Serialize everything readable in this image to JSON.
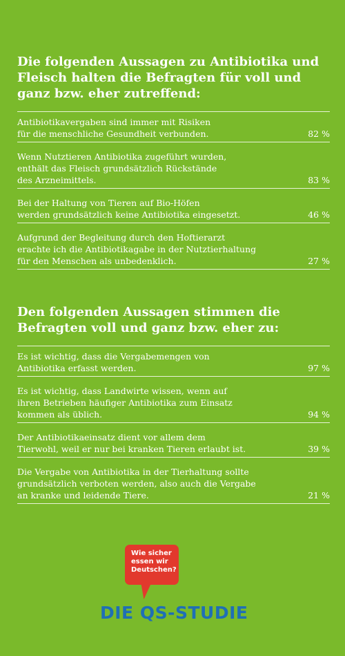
{
  "section1": {
    "title": "Die folgenden Aussagen zu Antibiotika und Fleisch halten die Befragten für voll und ganz bzw. eher zutreffend:",
    "items": [
      {
        "text": "Antibiotikavergaben sind immer mit Risiken\nfür die menschliche Gesundheit verbunden.",
        "value": "82 %"
      },
      {
        "text": "Wenn Nutztieren Antibiotika zugeführt wurden,\nenthält das Fleisch grundsätzlich Rückstände\ndes Arzneimittels.",
        "value": "83 %"
      },
      {
        "text": "Bei der Haltung von Tieren auf Bio-Höfen\nwerden grundsätzlich keine Antibiotika eingesetzt.",
        "value": "46 %"
      },
      {
        "text": "Aufgrund der Begleitung durch den Hoftierarzt\nerachte ich die Antibiotikagabe in der Nutztierhaltung\nfür den Menschen als unbedenklich.",
        "value": "27 %"
      }
    ]
  },
  "section2": {
    "title": "Den folgenden Aussagen stimmen die Befragten voll und ganz bzw. eher zu:",
    "items": [
      {
        "text": "Es ist wichtig, dass die Vergabemengen von\nAntibiotika erfasst werden.",
        "value": "97 %"
      },
      {
        "text": "Es ist wichtig, dass Landwirte wissen, wenn auf\nihren Betrieben häufiger Antibiotika zum Einsatz\nkommen als üblich.",
        "value": "94 %"
      },
      {
        "text": "Der Antibiotikaeinsatz dient vor allem dem\nTierwohl, weil er nur bei kranken Tieren erlaubt ist.",
        "value": "39 %"
      },
      {
        "text": "Die Vergabe von Antibiotika in der Tierhaltung sollte\ngrundsätzlich verboten werden, also auch die Vergabe\nan kranke und leidende Tiere.",
        "value": "21 %"
      }
    ]
  },
  "logo": {
    "bubble_line1": "Wie sicher",
    "bubble_line2": "essen wir",
    "bubble_line3": "Deutschen?",
    "brand": "DIE QS-STUDIE"
  },
  "colors": {
    "background": "#7aba2b",
    "bubble": "#e2392d",
    "brand": "#1f6fb5"
  }
}
